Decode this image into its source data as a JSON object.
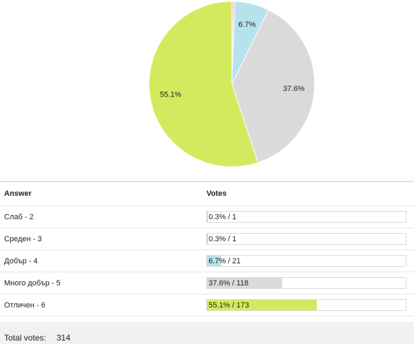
{
  "chart_data": {
    "type": "pie",
    "slices": [
      {
        "label": "Слаб - 2",
        "percent": 0.3,
        "votes": 1,
        "color": "#f4b3c2",
        "display": ""
      },
      {
        "label": "Среден - 3",
        "percent": 0.3,
        "votes": 1,
        "color": "#c5b7e8",
        "display": ""
      },
      {
        "label": "Добър - 4",
        "percent": 6.7,
        "votes": 21,
        "color": "#b6e2ec",
        "display": "6.7%"
      },
      {
        "label": "Много добър - 5",
        "percent": 37.6,
        "votes": 118,
        "color": "#dadada",
        "display": "37.6%"
      },
      {
        "label": "Отличен - 6",
        "percent": 55.1,
        "votes": 173,
        "color": "#d4ea5e",
        "display": "55.1%"
      }
    ]
  },
  "table": {
    "header_answer": "Answer",
    "header_votes": "Votes",
    "rows": [
      {
        "answer": "Слаб - 2",
        "votes_text": "0.3% / 1",
        "percent": 0.3,
        "color": "#f4b3c2"
      },
      {
        "answer": "Среден - 3",
        "votes_text": "0.3% / 1",
        "percent": 0.3,
        "color": "#c5b7e8"
      },
      {
        "answer": "Добър - 4",
        "votes_text": "6.7% / 21",
        "percent": 6.7,
        "color": "#b6e2ec"
      },
      {
        "answer": "Много добър - 5",
        "votes_text": "37.6% / 118",
        "percent": 37.6,
        "color": "#dadada"
      },
      {
        "answer": "Отличен - 6",
        "votes_text": "55.1% / 173",
        "percent": 55.1,
        "color": "#d4ea5e"
      }
    ]
  },
  "footer": {
    "total_label": "Total votes:",
    "total_value": "314"
  }
}
